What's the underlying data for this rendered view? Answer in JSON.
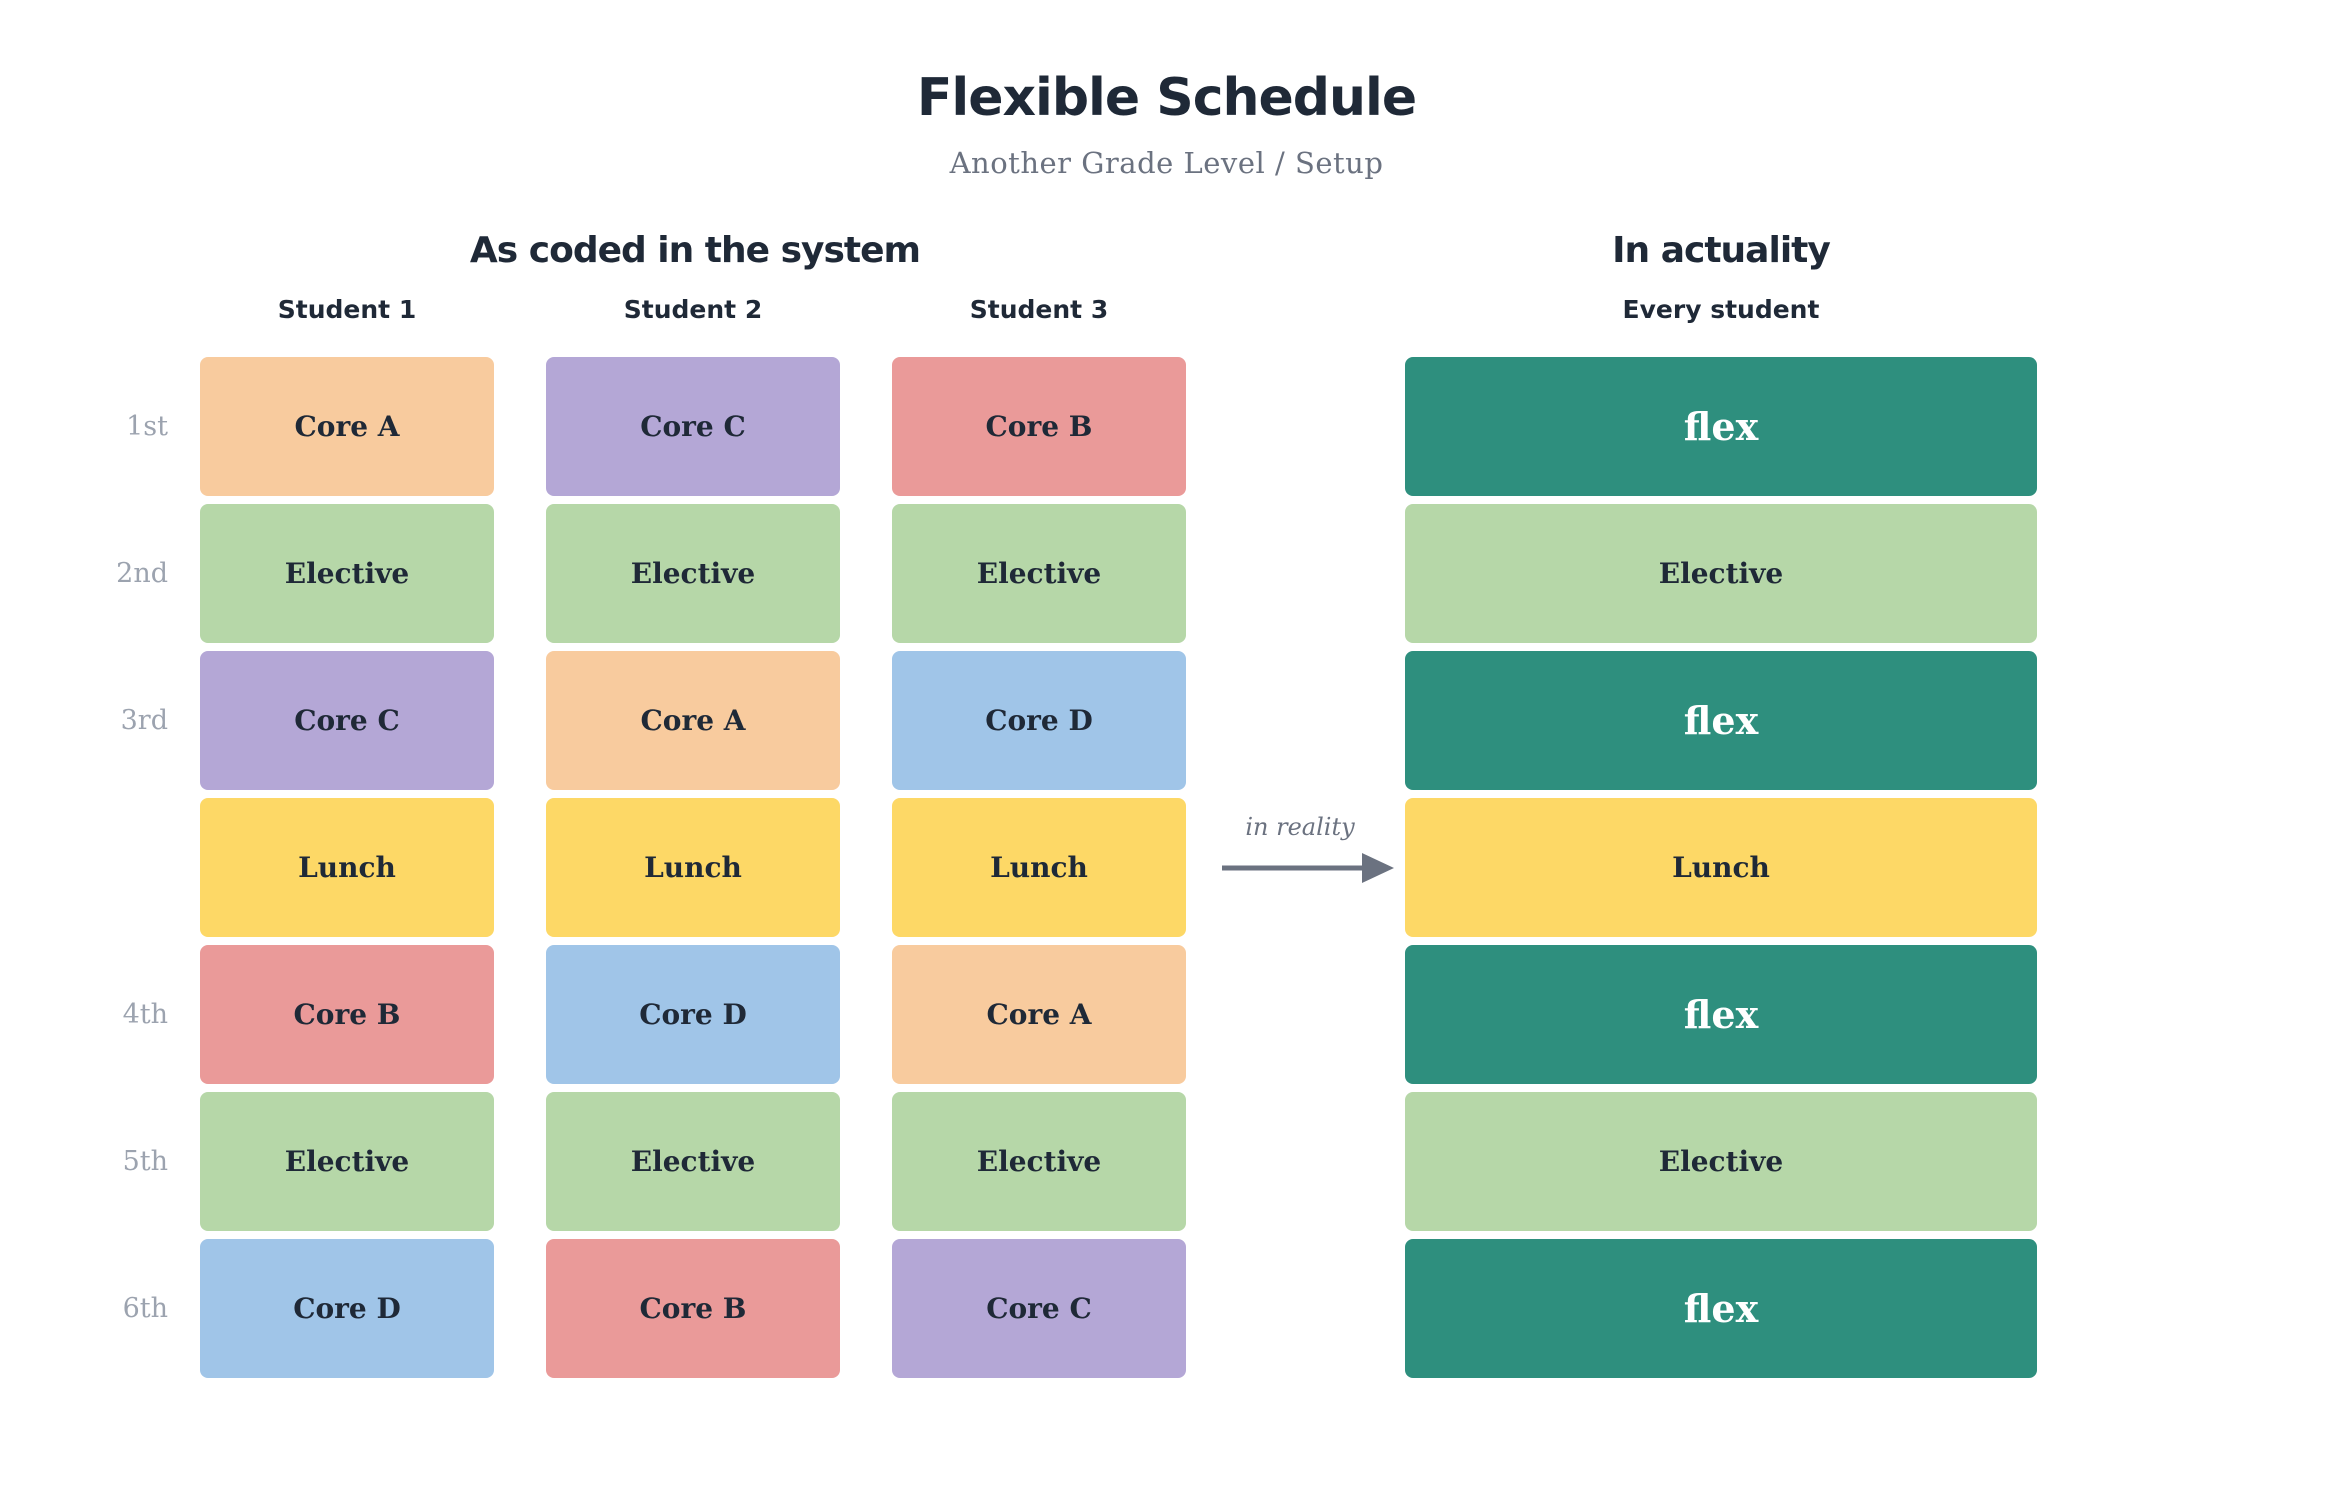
{
  "title": "Flexible Schedule",
  "subtitle": "Another Grade Level / Setup",
  "left_section": {
    "title": "As coded in the system",
    "columns": [
      "Student 1",
      "Student 2",
      "Student 3"
    ]
  },
  "right_section": {
    "title": "In actuality",
    "column": "Every student"
  },
  "periods": [
    "1st",
    "2nd",
    "3rd",
    "",
    "4th",
    "5th",
    "6th"
  ],
  "student_schedules": [
    [
      "Core A",
      "Elective",
      "Core C",
      "Lunch",
      "Core B",
      "Elective",
      "Core D"
    ],
    [
      "Core C",
      "Elective",
      "Core A",
      "Lunch",
      "Core D",
      "Elective",
      "Core B"
    ],
    [
      "Core B",
      "Elective",
      "Core D",
      "Lunch",
      "Core A",
      "Elective",
      "Core C"
    ]
  ],
  "actual_schedule": [
    "flex",
    "Elective",
    "flex",
    "Lunch",
    "flex",
    "Elective",
    "flex"
  ],
  "arrow_label": "in reality",
  "colors": {
    "Core A": "#f8cb9e",
    "Core B": "#ea9a99",
    "Core C": "#b4a7d6",
    "Core D": "#a0c5e8",
    "Elective": "#b6d7a8",
    "Lunch": "#fdd866",
    "flex": "#2e8f7e"
  }
}
